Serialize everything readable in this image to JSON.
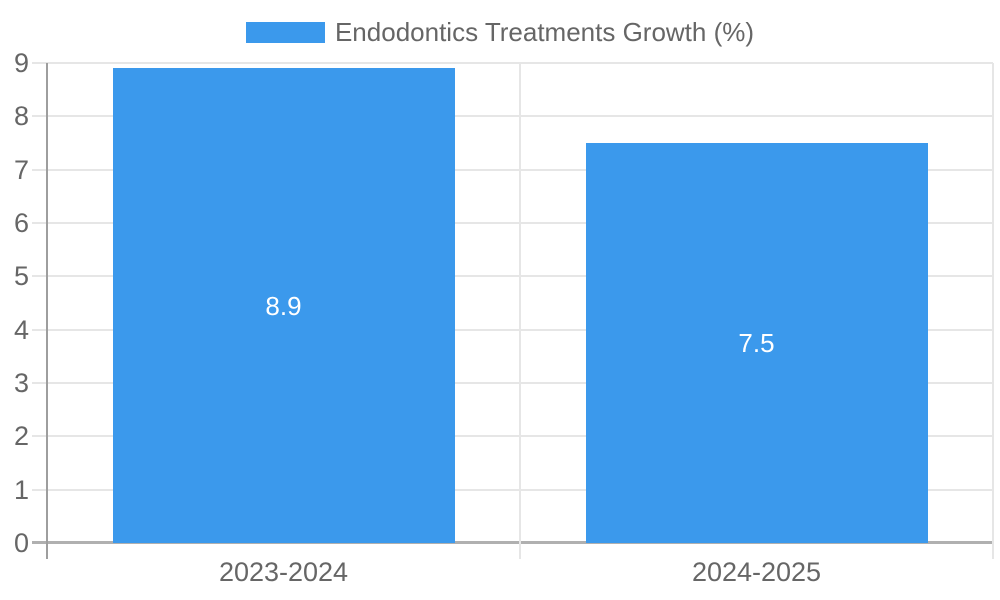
{
  "legend": {
    "label": "Endodontics Treatments Growth (%)"
  },
  "chart_data": {
    "type": "bar",
    "title": "Endodontics Treatments Growth (%)",
    "categories": [
      "2023-2024",
      "2024-2025"
    ],
    "values": [
      8.9,
      7.5
    ],
    "value_labels": [
      "8.9",
      "7.5"
    ],
    "xlabel": "",
    "ylabel": "",
    "ylim": [
      0,
      9
    ],
    "yticks": [
      0,
      1,
      2,
      3,
      4,
      5,
      6,
      7,
      8,
      9
    ],
    "grid": true,
    "legend_position": "top-center",
    "colors": {
      "bar": "#3b99ec",
      "grid": "#e6e6e6",
      "axis_y": "#9e9e9e",
      "axis_x": "#b0b0b0",
      "tick_text": "#666666",
      "value_text": "#ffffff",
      "background": "#ffffff"
    }
  }
}
